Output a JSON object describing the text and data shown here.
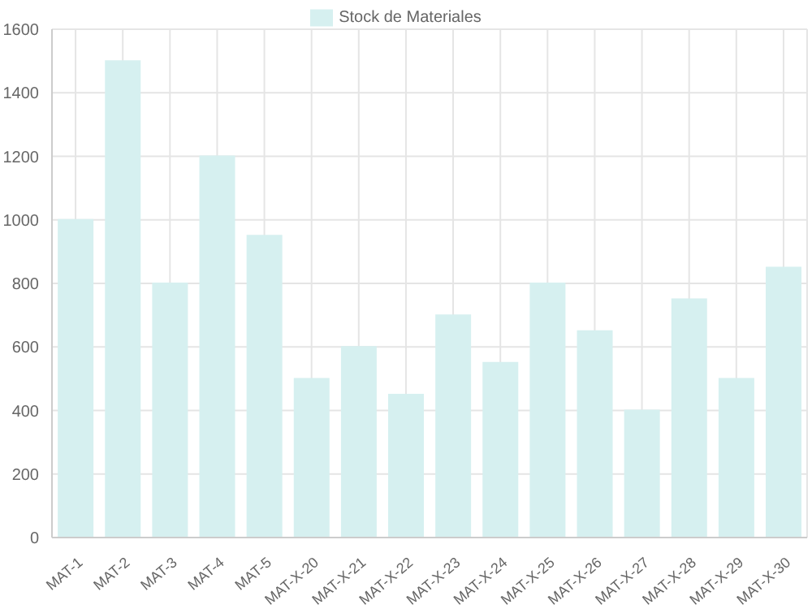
{
  "chart_data": {
    "type": "bar",
    "categories": [
      "MAT-1",
      "MAT-2",
      "MAT-3",
      "MAT-4",
      "MAT-5",
      "MAT-X-20",
      "MAT-X-21",
      "MAT-X-22",
      "MAT-X-23",
      "MAT-X-24",
      "MAT-X-25",
      "MAT-X-26",
      "MAT-X-27",
      "MAT-X-28",
      "MAT-X-29",
      "MAT-X-30"
    ],
    "series": [
      {
        "name": "Stock de Materiales",
        "color": "#d6f0f0",
        "values": [
          1000,
          1500,
          800,
          1200,
          950,
          500,
          600,
          450,
          700,
          550,
          800,
          650,
          400,
          750,
          500,
          850
        ]
      }
    ],
    "ylim": [
      0,
      1600
    ],
    "yticks": [
      0,
      200,
      400,
      600,
      800,
      1000,
      1200,
      1400,
      1600
    ],
    "grid": true,
    "legend": "top"
  }
}
